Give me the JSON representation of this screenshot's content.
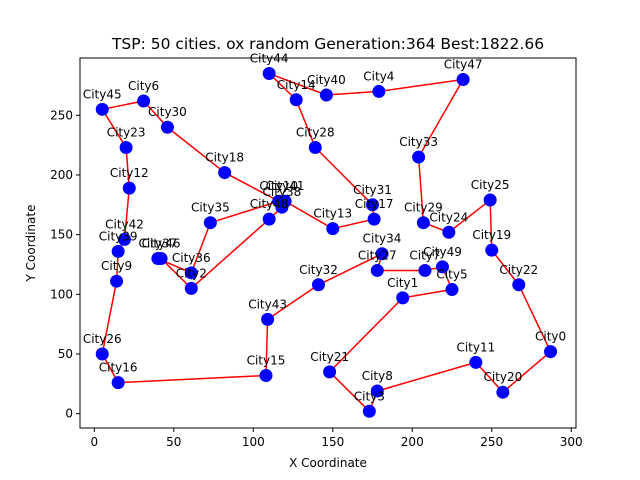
{
  "chart_data": {
    "type": "scatter",
    "title": "TSP: 50 cities. ox random Generation:364 Best:1822.66",
    "xlabel": "X Coordinate",
    "ylabel": "Y Coordinate",
    "xlim": [
      -9,
      303
    ],
    "ylim": [
      -12,
      298
    ],
    "xticks": [
      0,
      50,
      100,
      150,
      200,
      250,
      300
    ],
    "yticks": [
      0,
      50,
      100,
      150,
      200,
      250
    ],
    "grid": false,
    "colors": {
      "route": "#ff0000",
      "city": "#0000ff"
    },
    "cities": [
      {
        "name": "City0",
        "x": 287,
        "y": 52
      },
      {
        "name": "City1",
        "x": 194,
        "y": 97
      },
      {
        "name": "City2",
        "x": 61,
        "y": 105
      },
      {
        "name": "City3",
        "x": 173,
        "y": 2
      },
      {
        "name": "City4",
        "x": 179,
        "y": 270
      },
      {
        "name": "City5",
        "x": 225,
        "y": 104
      },
      {
        "name": "City6",
        "x": 31,
        "y": 262
      },
      {
        "name": "City7",
        "x": 208,
        "y": 120
      },
      {
        "name": "City8",
        "x": 178,
        "y": 19
      },
      {
        "name": "City9",
        "x": 14,
        "y": 111
      },
      {
        "name": "City10",
        "x": 116,
        "y": 178
      },
      {
        "name": "City11",
        "x": 240,
        "y": 43
      },
      {
        "name": "City12",
        "x": 22,
        "y": 189
      },
      {
        "name": "City13",
        "x": 150,
        "y": 155
      },
      {
        "name": "City14",
        "x": 127,
        "y": 263
      },
      {
        "name": "City15",
        "x": 108,
        "y": 32
      },
      {
        "name": "City16",
        "x": 15,
        "y": 26
      },
      {
        "name": "City17",
        "x": 176,
        "y": 163
      },
      {
        "name": "City18",
        "x": 82,
        "y": 202
      },
      {
        "name": "City19",
        "x": 250,
        "y": 137
      },
      {
        "name": "City20",
        "x": 257,
        "y": 18
      },
      {
        "name": "City21",
        "x": 148,
        "y": 35
      },
      {
        "name": "City22",
        "x": 267,
        "y": 108
      },
      {
        "name": "City23",
        "x": 20,
        "y": 223
      },
      {
        "name": "City24",
        "x": 223,
        "y": 152
      },
      {
        "name": "City25",
        "x": 249,
        "y": 179
      },
      {
        "name": "City26",
        "x": 5,
        "y": 50
      },
      {
        "name": "City27",
        "x": 178,
        "y": 120
      },
      {
        "name": "City28",
        "x": 139,
        "y": 223
      },
      {
        "name": "City29",
        "x": 207,
        "y": 160
      },
      {
        "name": "City30",
        "x": 46,
        "y": 240
      },
      {
        "name": "City31",
        "x": 175,
        "y": 175
      },
      {
        "name": "City32",
        "x": 141,
        "y": 108
      },
      {
        "name": "City33",
        "x": 204,
        "y": 215
      },
      {
        "name": "City34",
        "x": 181,
        "y": 134
      },
      {
        "name": "City35",
        "x": 73,
        "y": 160
      },
      {
        "name": "City36",
        "x": 61,
        "y": 118
      },
      {
        "name": "City37",
        "x": 40,
        "y": 130
      },
      {
        "name": "City38",
        "x": 118,
        "y": 173
      },
      {
        "name": "City39",
        "x": 15,
        "y": 136
      },
      {
        "name": "City40",
        "x": 146,
        "y": 267
      },
      {
        "name": "City41",
        "x": 120,
        "y": 178
      },
      {
        "name": "City42",
        "x": 19,
        "y": 146
      },
      {
        "name": "City43",
        "x": 109,
        "y": 79
      },
      {
        "name": "City44",
        "x": 110,
        "y": 285
      },
      {
        "name": "City45",
        "x": 5,
        "y": 255
      },
      {
        "name": "City46",
        "x": 42,
        "y": 130
      },
      {
        "name": "City47",
        "x": 232,
        "y": 280
      },
      {
        "name": "City48",
        "x": 110,
        "y": 163
      },
      {
        "name": "City49",
        "x": 219,
        "y": 123
      }
    ],
    "route": [
      "City4",
      "City47",
      "City33",
      "City29",
      "City24",
      "City25",
      "City19",
      "City22",
      "City0",
      "City20",
      "City11",
      "City8",
      "City3",
      "City21",
      "City1",
      "City5",
      "City49",
      "City7",
      "City27",
      "City34",
      "City32",
      "City43",
      "City15",
      "City16",
      "City26",
      "City9",
      "City39",
      "City42",
      "City12",
      "City23",
      "City45",
      "City6",
      "City30",
      "City18",
      "City10",
      "City35",
      "City36",
      "City37",
      "City46",
      "City2",
      "City48",
      "City38",
      "City41",
      "City13",
      "City17",
      "City31",
      "City28",
      "City14",
      "City44",
      "City40"
    ]
  }
}
